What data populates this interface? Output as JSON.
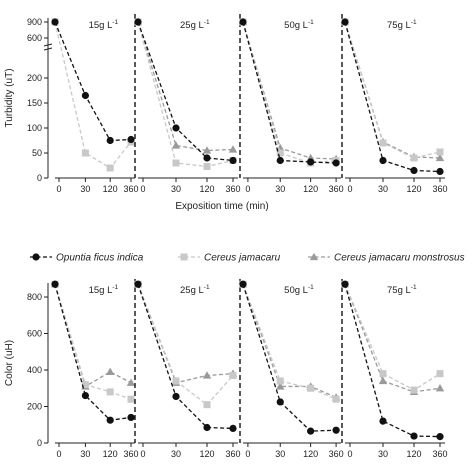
{
  "chart_data": [
    {
      "type": "line",
      "ylabel": "Turbidity (uT)",
      "xlabel": "Exposition time (min)",
      "x_ticks": [
        "0",
        "30",
        "120",
        "360"
      ],
      "y_ticks": [
        "0",
        "50",
        "100",
        "150",
        "200",
        "600",
        "900"
      ],
      "y_axis_break": true,
      "panels": [
        {
          "label": "15g L",
          "series": [
            {
              "key": "opuntia",
              "values": [
                900,
                165,
                75,
                77
              ]
            },
            {
              "key": "cereus",
              "values": [
                900,
                50,
                20,
                72
              ]
            },
            {
              "key": "monstrosus",
              "values": [
                null,
                null,
                null,
                null
              ]
            }
          ]
        },
        {
          "label": "25g L",
          "series": [
            {
              "key": "opuntia",
              "values": [
                900,
                100,
                40,
                35
              ]
            },
            {
              "key": "cereus",
              "values": [
                900,
                30,
                23,
                35
              ]
            },
            {
              "key": "monstrosus",
              "values": [
                900,
                65,
                55,
                57
              ]
            }
          ]
        },
        {
          "label": "50g L",
          "series": [
            {
              "key": "opuntia",
              "values": [
                900,
                35,
                32,
                30
              ]
            },
            {
              "key": "cereus",
              "values": [
                900,
                50,
                30,
                35
              ]
            },
            {
              "key": "monstrosus",
              "values": [
                900,
                60,
                40,
                38
              ]
            }
          ]
        },
        {
          "label": "75g L",
          "series": [
            {
              "key": "opuntia",
              "values": [
                900,
                35,
                15,
                13
              ]
            },
            {
              "key": "cereus",
              "values": [
                900,
                70,
                40,
                52
              ]
            },
            {
              "key": "monstrosus",
              "values": [
                900,
                72,
                42,
                40
              ]
            }
          ]
        }
      ]
    },
    {
      "type": "line",
      "ylabel": "Color (uH)",
      "x_ticks": [
        "0",
        "30",
        "120",
        "360"
      ],
      "y_ticks": [
        "0",
        "200",
        "400",
        "600",
        "800"
      ],
      "ylim": [
        0,
        850
      ],
      "panels": [
        {
          "label": "15g L",
          "series": [
            {
              "key": "opuntia",
              "values": [
                870,
                260,
                125,
                140
              ]
            },
            {
              "key": "cereus",
              "values": [
                870,
                320,
                280,
                240
              ]
            },
            {
              "key": "monstrosus",
              "values": [
                870,
                310,
                390,
                330
              ]
            }
          ]
        },
        {
          "label": "25g L",
          "series": [
            {
              "key": "opuntia",
              "values": [
                870,
                255,
                85,
                80
              ]
            },
            {
              "key": "cereus",
              "values": [
                870,
                340,
                210,
                370
              ]
            },
            {
              "key": "monstrosus",
              "values": [
                870,
                330,
                370,
                380
              ]
            }
          ]
        },
        {
          "label": "50g L",
          "series": [
            {
              "key": "opuntia",
              "values": [
                870,
                225,
                65,
                70
              ]
            },
            {
              "key": "cereus",
              "values": [
                870,
                340,
                300,
                240
              ]
            },
            {
              "key": "monstrosus",
              "values": [
                870,
                310,
                310,
                250
              ]
            }
          ]
        },
        {
          "label": "75g L",
          "series": [
            {
              "key": "opuntia",
              "values": [
                870,
                120,
                38,
                35
              ]
            },
            {
              "key": "cereus",
              "values": [
                870,
                380,
                290,
                380
              ]
            },
            {
              "key": "monstrosus",
              "values": [
                870,
                340,
                280,
                300
              ]
            }
          ]
        }
      ]
    }
  ],
  "unit_superscript": "-1",
  "legend": [
    {
      "key": "opuntia",
      "name": "Opuntia ficus indica",
      "color": "#111111",
      "marker": "circle"
    },
    {
      "key": "cereus",
      "name": "Cereus jamacaru",
      "color": "#c8c8c8",
      "marker": "square"
    },
    {
      "key": "monstrosus",
      "name": "Cereus jamacaru monstrosus",
      "color": "#9a9a9a",
      "marker": "triangle"
    }
  ]
}
